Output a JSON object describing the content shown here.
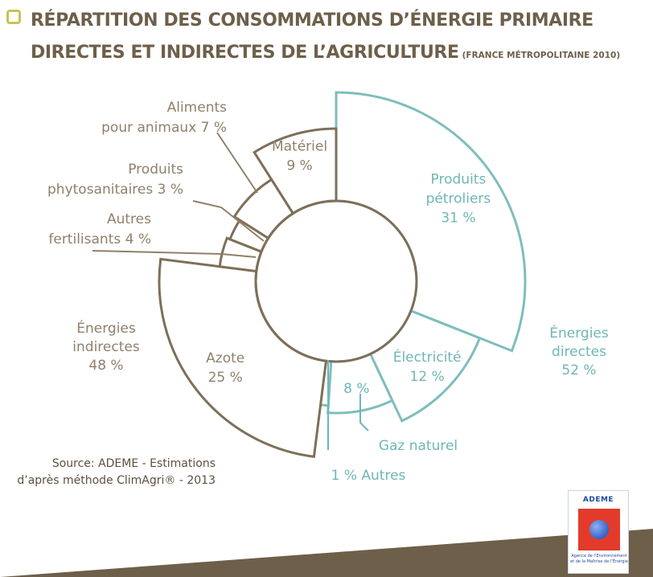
{
  "header": {
    "title_line1": "RÉPARTITION DES CONSOMMATIONS D’ÉNERGIE PRIMAIRE",
    "title_line2": "DIRECTES ET INDIRECTES DE L’AGRICULTURE",
    "title_note": "(FRANCE MÉTROPOLITAINE 2010)"
  },
  "chart_data": {
    "type": "pie",
    "title": "RÉPARTITION DES CONSOMMATIONS D’ÉNERGIE PRIMAIRE DIRECTES ET INDIRECTES DE L’AGRICULTURE (FRANCE MÉTROPOLITAINE 2010)",
    "groups": [
      {
        "name": "Énergies directes",
        "label_line1": "Énergies",
        "label_line2": "directes",
        "value_label": "52 %",
        "value": 52,
        "color": "#7fbdbd"
      },
      {
        "name": "Énergies indirectes",
        "label_line1": "Énergies",
        "label_line2": "indirectes",
        "value_label": "48 %",
        "value": 48,
        "color": "#7e6f59"
      }
    ],
    "slices": [
      {
        "name": "Produits pétroliers",
        "group": "Énergies directes",
        "value": 31,
        "label_lines": [
          "Produits",
          "pétroliers",
          "31 %"
        ]
      },
      {
        "name": "Électricité",
        "group": "Énergies directes",
        "value": 12,
        "label_lines": [
          "Électricité",
          "12 %"
        ]
      },
      {
        "name": "Gaz naturel",
        "group": "Énergies directes",
        "value": 8,
        "label_lines": [
          "8 %"
        ],
        "callout_lines": [
          "Gaz naturel"
        ]
      },
      {
        "name": "Autres",
        "group": "Énergies directes",
        "value": 1,
        "label_lines": [],
        "callout_lines": [
          "1 % Autres"
        ]
      },
      {
        "name": "Azote",
        "group": "Énergies indirectes",
        "value": 25,
        "label_lines": [
          "Azote",
          "25 %"
        ]
      },
      {
        "name": "Autres fertilisants",
        "group": "Énergies indirectes",
        "value": 4,
        "label_lines": [],
        "callout_lines": [
          "Autres",
          "fertilisants 4 %"
        ]
      },
      {
        "name": "Produits phytosanitaires",
        "group": "Énergies indirectes",
        "value": 3,
        "label_lines": [],
        "callout_lines": [
          "Produits",
          "phytosanitaires 3 %"
        ]
      },
      {
        "name": "Aliments pour animaux",
        "group": "Énergies indirectes",
        "value": 7,
        "label_lines": [],
        "callout_lines": [
          "Aliments",
          "pour animaux 7 %"
        ]
      },
      {
        "name": "Matériel",
        "group": "Énergies indirectes",
        "value": 9,
        "label_lines": [
          "Matériel",
          "9 %"
        ]
      }
    ]
  },
  "source": {
    "line1": "Source: ADEME - Estimations",
    "line2": "d’après méthode ClimAgri® - 2013"
  },
  "logo": {
    "name": "ADEME",
    "subtitle_line1": "Agence de l’Environnement",
    "subtitle_line2": "et de la Maîtrise de l’Énergie"
  },
  "colors": {
    "title": "#6e5f4a",
    "title_box": "#c8c256",
    "direct": "#7fbdbd",
    "direct_text": "#6fb6b6",
    "indirect": "#7e6f59",
    "indirect_text": "#8f806a",
    "band": "#6e5f4a",
    "logo_red": "#e23b2c",
    "logo_blue": "#1f4aa0"
  }
}
